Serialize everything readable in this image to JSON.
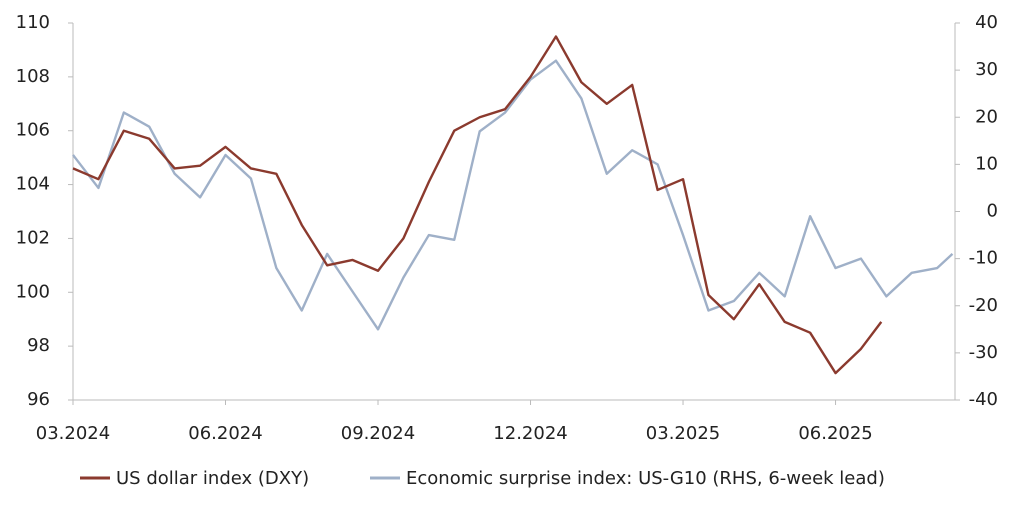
{
  "chart_data": {
    "type": "line",
    "xlim": [
      0,
      17.35
    ],
    "xticks": [
      {
        "value": 0,
        "label": "03.2024"
      },
      {
        "value": 3,
        "label": "06.2024"
      },
      {
        "value": 6,
        "label": "09.2024"
      },
      {
        "value": 9,
        "label": "12.2024"
      },
      {
        "value": 12,
        "label": "03.2025"
      },
      {
        "value": 15,
        "label": "06.2025"
      }
    ],
    "ylim": [
      96,
      110
    ],
    "yticks": [
      96,
      98,
      100,
      102,
      104,
      106,
      108,
      110
    ],
    "y2lim": [
      -40,
      40
    ],
    "y2ticks": [
      -40,
      -30,
      -20,
      -10,
      0,
      10,
      20,
      30,
      40
    ],
    "series": [
      {
        "name": "US dollar index (DXY)",
        "color": "#8b3a2e",
        "x": [
          0,
          0.5,
          1,
          1.5,
          2,
          2.5,
          3,
          3.5,
          4,
          4.5,
          5,
          5.5,
          6,
          6.5,
          7,
          7.5,
          8,
          8.5,
          9,
          9.5,
          10,
          10.5,
          11,
          11.5,
          12,
          12.5,
          13,
          13.5,
          14,
          14.5,
          15,
          15.5,
          15.9
        ],
        "values": [
          104.6,
          104.2,
          106.0,
          105.7,
          104.6,
          104.7,
          105.4,
          104.6,
          104.4,
          102.5,
          101.0,
          101.2,
          100.8,
          102.0,
          104.1,
          106.0,
          106.5,
          106.8,
          108.0,
          109.5,
          107.8,
          107.0,
          107.7,
          103.8,
          104.2,
          99.9,
          99.0,
          100.3,
          98.9,
          98.5,
          97.0,
          97.9,
          98.9
        ]
      },
      {
        "name": "Economic surprise index: US-G10 (RHS, 6-week lead)",
        "color": "#9fb0c8",
        "axis": "y2",
        "x": [
          0,
          0.5,
          1,
          1.5,
          2,
          2.5,
          3,
          3.5,
          4,
          4.5,
          5,
          5.5,
          6,
          6.5,
          7,
          7.5,
          8,
          8.5,
          9,
          9.5,
          10,
          10.5,
          11,
          11.5,
          12,
          12.5,
          13,
          13.5,
          14,
          14.5,
          15,
          15.5,
          16,
          16.5,
          17,
          17.3
        ],
        "values": [
          12,
          5,
          21,
          18,
          8,
          3,
          12,
          7,
          -12,
          -21,
          -9,
          -17,
          -25,
          -14,
          -5,
          -6,
          17,
          21,
          28,
          32,
          24,
          8,
          13,
          10,
          -5,
          -21,
          -19,
          -13,
          -18,
          -1,
          -12,
          -10,
          -18,
          -13,
          -12,
          -9
        ]
      }
    ]
  }
}
